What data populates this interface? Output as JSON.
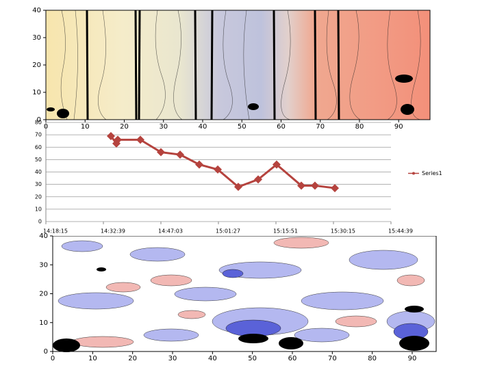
{
  "chart_data": [
    {
      "type": "contour",
      "xlim": [
        0,
        98
      ],
      "ylim": [
        0,
        40
      ],
      "xticks": [
        0,
        10,
        20,
        30,
        40,
        50,
        60,
        70,
        80,
        90
      ],
      "yticks": [
        0,
        10,
        20,
        30,
        40
      ]
    },
    {
      "type": "line",
      "xlim": [
        "14:18:15",
        "15:44:39"
      ],
      "xticks": [
        "14:18:15",
        "14:32:39",
        "14:47:03",
        "15:01:27",
        "15:15:51",
        "15:30:15",
        "15:44:39"
      ],
      "ylim": [
        0,
        80
      ],
      "yticks": [
        0,
        10,
        20,
        30,
        40,
        50,
        60,
        70,
        80
      ],
      "grid": true,
      "legend": "right",
      "x": [
        "14:34:32",
        "14:35:54",
        "14:36:15",
        "14:41:54",
        "14:47:03",
        "14:51:51",
        "14:56:39",
        "15:01:17",
        "15:06:25",
        "15:11:24",
        "15:16:01",
        "15:22:12",
        "15:25:37",
        "15:30:36"
      ],
      "series": [
        {
          "name": "Series1",
          "color": "#b5433e",
          "values": [
            69,
            63,
            66,
            66,
            56,
            54,
            46,
            42,
            28,
            34,
            46,
            29,
            29,
            27
          ]
        }
      ]
    },
    {
      "type": "contour",
      "xlim": [
        0,
        96
      ],
      "ylim": [
        0,
        40
      ],
      "xticks": [
        0,
        10,
        20,
        30,
        40,
        50,
        60,
        70,
        80,
        90
      ],
      "yticks": [
        0,
        10,
        20,
        30,
        40
      ]
    }
  ]
}
